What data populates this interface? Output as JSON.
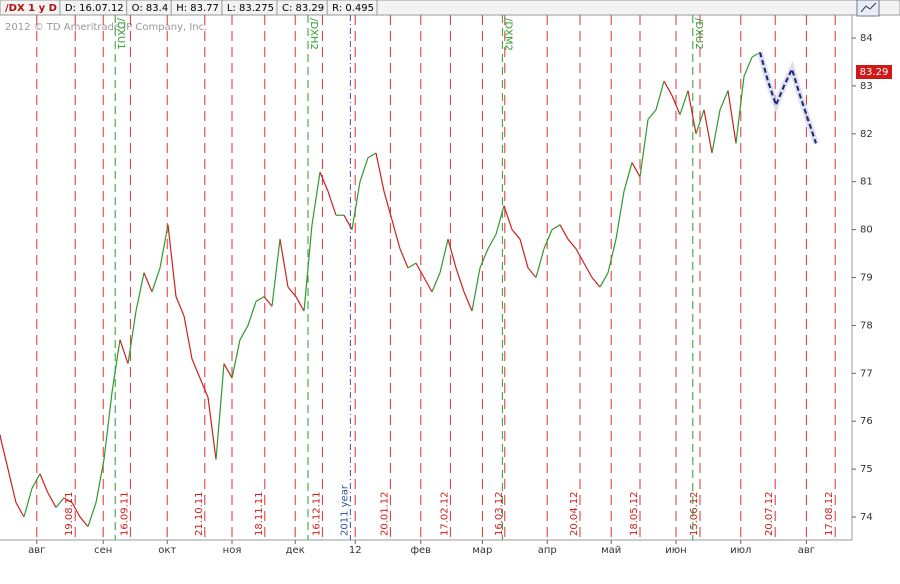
{
  "chart_data": {
    "type": "line",
    "header": [
      "/DX 1 y D",
      "D: 16.07.12",
      "O: 83.4",
      "H: 83.77",
      "L: 83.275",
      "C: 83.29",
      "R: 0.495"
    ],
    "copyright": "2012 © TD Ameritrade IP Company, Inc.",
    "xlim": [
      0,
      106.5
    ],
    "ylim": [
      73.52,
      84.48
    ],
    "yticks": [
      74,
      75,
      76,
      77,
      78,
      79,
      80,
      81,
      82,
      83,
      84
    ],
    "xticks": [
      {
        "value": 4.6,
        "label": "авг"
      },
      {
        "value": 12.9,
        "label": "сен"
      },
      {
        "value": 20.9,
        "label": "окт"
      },
      {
        "value": 29,
        "label": "ноя"
      },
      {
        "value": 36.9,
        "label": "дек"
      },
      {
        "value": 44.4,
        "label": "12"
      },
      {
        "value": 52.6,
        "label": "фев"
      },
      {
        "value": 60.3,
        "label": "мар"
      },
      {
        "value": 68.4,
        "label": "апр"
      },
      {
        "value": 76.4,
        "label": "май"
      },
      {
        "value": 84.5,
        "label": "июн"
      },
      {
        "value": 92.6,
        "label": "июл"
      },
      {
        "value": 100.8,
        "label": "авг"
      }
    ],
    "expiration_lines": [
      {
        "value": 9.4,
        "label": "19.08.11"
      },
      {
        "value": 16.3,
        "label": "16.09.11"
      },
      {
        "value": 25.6,
        "label": "21.10.11"
      },
      {
        "value": 33.1,
        "label": "18.11.11"
      },
      {
        "value": 40.3,
        "label": "16.12.11"
      },
      {
        "value": 48.8,
        "label": "20.01.12"
      },
      {
        "value": 56.3,
        "label": "17.02.12"
      },
      {
        "value": 63.1,
        "label": "16.03.12"
      },
      {
        "value": 72.5,
        "label": "20.04.12"
      },
      {
        "value": 80,
        "label": "18.05.12"
      },
      {
        "value": 87.5,
        "label": "15.06.12"
      },
      {
        "value": 96.9,
        "label": "20.07.12"
      },
      {
        "value": 104.4,
        "label": "17.08.12"
      }
    ],
    "contract_lines": [
      {
        "value": 14.4,
        "label": "/DXU1"
      },
      {
        "value": 38.5,
        "label": "/DXH2"
      },
      {
        "value": 62.8,
        "label": "/DXM2"
      },
      {
        "value": 86.6,
        "label": "/DXU2"
      }
    ],
    "year_line": {
      "value": 43.8,
      "label": "2011 year"
    },
    "last_value": 83.29,
    "series": [
      {
        "name": "/DX",
        "up_color": "#2e9a2e",
        "down_color": "#cc2020",
        "values": [
          75.7,
          75.0,
          74.3,
          74.0,
          74.6,
          74.9,
          74.5,
          74.2,
          74.4,
          74.3,
          74.0,
          73.8,
          74.3,
          75.2,
          76.6,
          77.7,
          77.2,
          78.3,
          79.1,
          78.7,
          79.2,
          80.1,
          78.6,
          78.2,
          77.3,
          76.9,
          76.5,
          75.2,
          77.2,
          76.9,
          77.7,
          78.0,
          78.5,
          78.6,
          78.4,
          79.8,
          78.8,
          78.6,
          78.3,
          80.1,
          81.2,
          80.8,
          80.3,
          80.3,
          80.0,
          81.0,
          81.5,
          81.6,
          80.8,
          80.2,
          79.6,
          79.2,
          79.3,
          79.0,
          78.7,
          79.1,
          79.8,
          79.2,
          78.7,
          78.3,
          79.2,
          79.6,
          79.9,
          80.5,
          80.0,
          79.8,
          79.2,
          79.0,
          79.6,
          80.0,
          80.1,
          79.8,
          79.6,
          79.3,
          79.0,
          78.8,
          79.1,
          79.8,
          80.8,
          81.4,
          81.1,
          82.3,
          82.5,
          83.1,
          82.8,
          82.4,
          82.9,
          82.0,
          82.5,
          81.6,
          82.5,
          82.9,
          81.8,
          83.2,
          83.6,
          83.7,
          null,
          null,
          null,
          null,
          null,
          null,
          null
        ]
      },
      {
        "name": "forecast",
        "color": "#1a237e",
        "values": [
          null,
          null,
          null,
          null,
          null,
          null,
          null,
          null,
          null,
          null,
          null,
          null,
          null,
          null,
          null,
          null,
          null,
          null,
          null,
          null,
          null,
          null,
          null,
          null,
          null,
          null,
          null,
          null,
          null,
          null,
          null,
          null,
          null,
          null,
          null,
          null,
          null,
          null,
          null,
          null,
          null,
          null,
          null,
          null,
          null,
          null,
          null,
          null,
          null,
          null,
          null,
          null,
          null,
          null,
          null,
          null,
          null,
          null,
          null,
          null,
          null,
          null,
          null,
          null,
          null,
          null,
          null,
          null,
          null,
          null,
          null,
          null,
          null,
          null,
          null,
          null,
          null,
          null,
          null,
          null,
          null,
          null,
          null,
          null,
          null,
          null,
          null,
          null,
          null,
          null,
          null,
          null,
          null,
          null,
          null,
          83.7,
          83.1,
          82.6,
          83.0,
          83.35,
          82.8,
          82.3,
          81.8
        ]
      }
    ]
  }
}
